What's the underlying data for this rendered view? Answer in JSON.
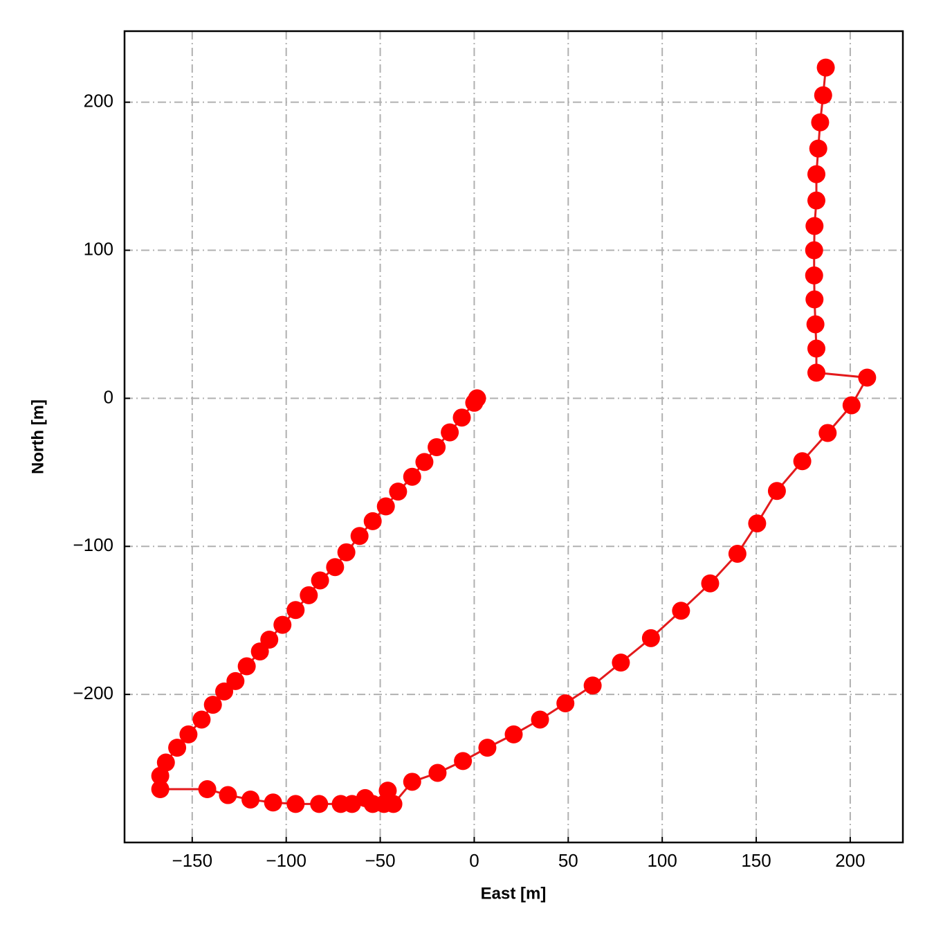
{
  "chart_data": {
    "type": "line",
    "xlabel": "East [m]",
    "ylabel": "North [m]",
    "x": [
      1.5,
      0,
      -6.6,
      -13,
      -20,
      -26.5,
      -33,
      -40.5,
      -47,
      -54,
      -61,
      -68,
      -74,
      -82,
      -88,
      -95,
      -102,
      -109,
      -114,
      -121,
      -127,
      -133,
      -139,
      -145,
      -152,
      -158,
      -164,
      -167,
      -167,
      -142,
      -131,
      -119,
      -107,
      -95,
      -82.5,
      -71,
      -65,
      -58,
      -54,
      -48,
      -46,
      -43,
      -33,
      -19.5,
      -6,
      7,
      21,
      35,
      48.5,
      63,
      78,
      94,
      110,
      125.5,
      140,
      150.5,
      161,
      174.5,
      188,
      200.7,
      209,
      182,
      182,
      181.5,
      181,
      180.8,
      180.8,
      181,
      182,
      182,
      183,
      184,
      185.6,
      187
    ],
    "values": [
      0,
      -3,
      -13,
      -23,
      -33,
      -43,
      -53,
      -63,
      -73,
      -83,
      -93,
      -104,
      -114,
      -123,
      -133,
      -143,
      -153,
      -163,
      -171,
      -181,
      -191,
      -198,
      -207,
      -217,
      -227,
      -236,
      -246,
      -255,
      -264,
      -264,
      -268,
      -271,
      -273,
      -274,
      -274,
      -274,
      -274,
      -270,
      -274,
      -274,
      -265,
      -274,
      -259,
      -253,
      -245,
      -236,
      -227,
      -217,
      -206,
      -194,
      -178.5,
      -162,
      -143.5,
      -125,
      -105,
      -84.5,
      -62.6,
      -42.5,
      -23.4,
      -4.7,
      14,
      17.3,
      33.6,
      50,
      66.8,
      83,
      100,
      116.4,
      133.6,
      151.4,
      168.7,
      186.4,
      204.7,
      223.4
    ],
    "line_color": "#e31a1c",
    "marker_color": "#ff0000",
    "xlim": [
      -186,
      228
    ],
    "ylim": [
      -300,
      248
    ],
    "xticks": [
      {
        "value": -150,
        "label": "−150"
      },
      {
        "value": -100,
        "label": "−100"
      },
      {
        "value": -50,
        "label": "−50"
      },
      0,
      50,
      100,
      150,
      200
    ],
    "yticks": [
      {
        "value": -200,
        "label": "−200"
      },
      {
        "value": -100,
        "label": "−100"
      },
      0,
      100,
      200
    ],
    "grid": true
  }
}
